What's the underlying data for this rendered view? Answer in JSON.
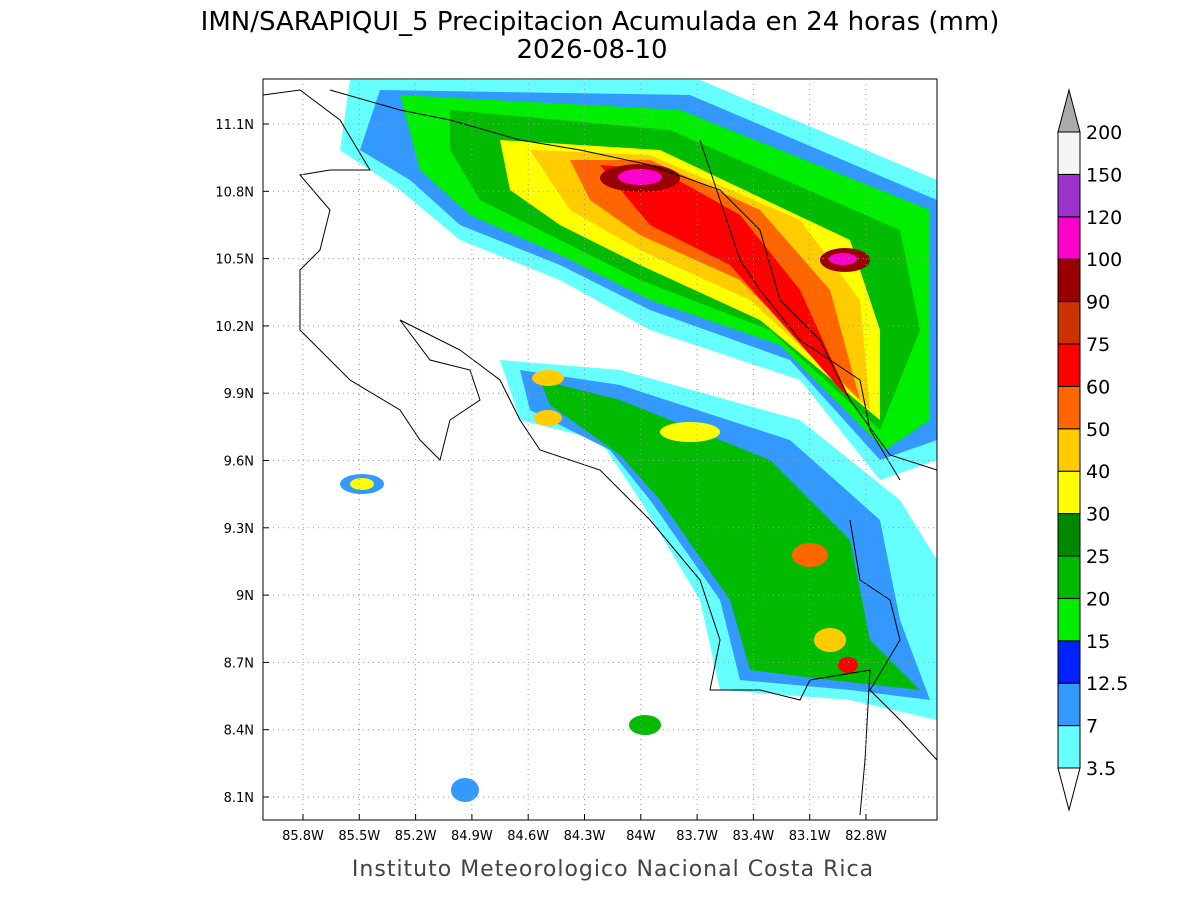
{
  "title": "IMN/SARAPIQUI_5 Precipitacion Acumulada en 24 horas (mm)",
  "date": "2026-08-10",
  "map": {
    "x_ticks": [
      "85.8W",
      "85.5W",
      "85.2W",
      "84.9W",
      "84.6W",
      "84.3W",
      "84W",
      "83.7W",
      "83.4W",
      "83.1W",
      "82.8W"
    ],
    "y_ticks": [
      "11.1N",
      "10.8N",
      "10.5N",
      "10.2N",
      "9.9N",
      "9.6N",
      "9.3N",
      "9N",
      "8.7N",
      "8.4N",
      "8.1N"
    ]
  },
  "colorbar": {
    "levels": [
      "3.5",
      "7",
      "12.5",
      "15",
      "20",
      "25",
      "30",
      "40",
      "50",
      "60",
      "75",
      "90",
      "100",
      "120",
      "150",
      "200"
    ],
    "colors": [
      "#66ffff",
      "#3399ff",
      "#0022ff",
      "#00ee00",
      "#00bb00",
      "#008800",
      "#ffff00",
      "#ffcc00",
      "#ff6600",
      "#ff0000",
      "#cc3300",
      "#990000",
      "#ff00cc",
      "#9933cc",
      "#f5f5f5"
    ],
    "under_color": "#ffffff",
    "over_color": "#aaaaaa"
  },
  "footer": "Instituto Meteorologico Nacional Costa Rica"
}
